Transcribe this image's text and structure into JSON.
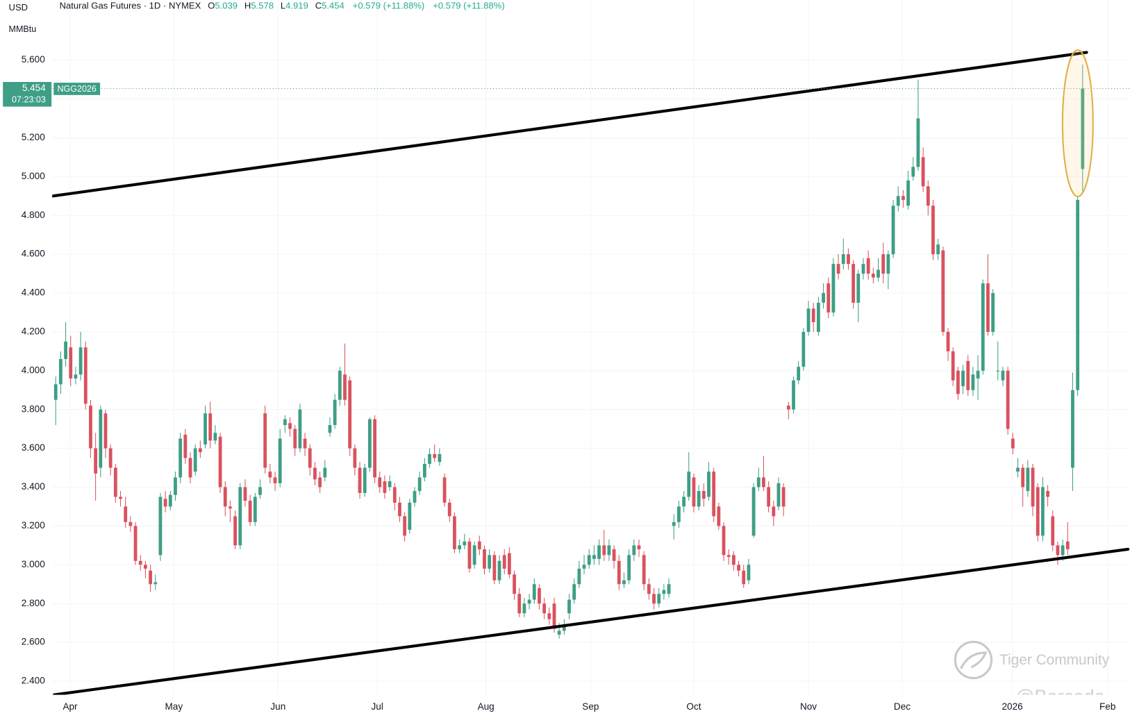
{
  "header": {
    "currency": "USD",
    "unit": "MMBtu",
    "title": "Natural Gas Futures · 1D · NYMEX",
    "ohlc_labels": [
      "O",
      "H",
      "L",
      "C"
    ],
    "change": [
      "+0.579 (+11.88%)",
      "+0.579 (+11.88%)"
    ]
  },
  "price_tag": {
    "countdown": "07:23:03",
    "symbol": "NGG2026"
  },
  "watermark": {
    "brand": "Tiger Community",
    "handle": "@Barcode"
  },
  "chart_data": {
    "type": "candlestick",
    "up_color": "#3e9e86",
    "down_color": "#d9525e",
    "grid": true,
    "xlim": [
      -0.7,
      215.5
    ],
    "ylim": [
      2.33,
      5.91
    ],
    "xticks": [
      {
        "value": 2.9,
        "label": "Apr"
      },
      {
        "value": 23.7,
        "label": "May"
      },
      {
        "value": 44.6,
        "label": "Jun"
      },
      {
        "value": 64.5,
        "label": "Jul"
      },
      {
        "value": 86.3,
        "label": "Aug"
      },
      {
        "value": 107.3,
        "label": "Sep"
      },
      {
        "value": 128,
        "label": "Oct"
      },
      {
        "value": 151,
        "label": "Nov"
      },
      {
        "value": 169.8,
        "label": "Dec"
      },
      {
        "value": 191.9,
        "label": "2026"
      },
      {
        "value": 211,
        "label": "Feb"
      }
    ],
    "yticks": [
      {
        "value": 2.4,
        "label": "2.400"
      },
      {
        "value": 2.6,
        "label": "2.600"
      },
      {
        "value": 2.8,
        "label": "2.800"
      },
      {
        "value": 3.0,
        "label": "3.000"
      },
      {
        "value": 3.2,
        "label": "3.200"
      },
      {
        "value": 3.4,
        "label": "3.400"
      },
      {
        "value": 3.6,
        "label": "3.600"
      },
      {
        "value": 3.8,
        "label": "3.800"
      },
      {
        "value": 4.0,
        "label": "4.000"
      },
      {
        "value": 4.2,
        "label": "4.200"
      },
      {
        "value": 4.4,
        "label": "4.400"
      },
      {
        "value": 4.6,
        "label": "4.600"
      },
      {
        "value": 4.8,
        "label": "4.800"
      },
      {
        "value": 5.0,
        "label": "5.000"
      },
      {
        "value": 5.2,
        "label": "5.200"
      },
      {
        "value": 5.4,
        "label": "5.400"
      },
      {
        "value": 5.6,
        "label": "5.600"
      }
    ],
    "trendlines": [
      {
        "from": [
          -0.6,
          4.9
        ],
        "to": [
          206.8,
          5.64
        ]
      },
      {
        "from": [
          -0.3,
          2.33
        ],
        "to": [
          215.1,
          3.08
        ]
      }
    ],
    "open": [
      3.85,
      3.93,
      4.06,
      4.12,
      3.96,
      3.98,
      4.12,
      3.82,
      3.6,
      3.5,
      3.78,
      3.6,
      3.5,
      3.35,
      3.3,
      3.22,
      3.2,
      3.02,
      3.0,
      2.97,
      2.9,
      3.05,
      3.34,
      3.3,
      3.36,
      3.45,
      3.67,
      3.55,
      3.48,
      3.6,
      3.62,
      3.78,
      3.64,
      3.66,
      3.4,
      3.3,
      3.25,
      3.1,
      3.4,
      3.33,
      3.22,
      3.36,
      3.78,
      3.48,
      3.45,
      3.42,
      3.72,
      3.73,
      3.7,
      3.6,
      3.65,
      3.6,
      3.5,
      3.45,
      3.45,
      3.68,
      3.72,
      3.85,
      3.98,
      3.95,
      3.6,
      3.5,
      3.37,
      3.5,
      3.75,
      3.45,
      3.43,
      3.4,
      3.4,
      3.32,
      3.25,
      3.18,
      3.32,
      3.38,
      3.45,
      3.52,
      3.57,
      3.53,
      3.45,
      3.32,
      3.25,
      3.08,
      3.1,
      3.12,
      3.0,
      3.12,
      3.08,
      2.98,
      3.05,
      2.92,
      3.05,
      3.06,
      2.95,
      2.85,
      2.75,
      2.8,
      2.82,
      2.88,
      2.8,
      2.75,
      2.8,
      2.64,
      2.66,
      2.75,
      2.82,
      2.9,
      2.98,
      3.0,
      3.03,
      3.03,
      3.1,
      3.05,
      3.08,
      3.02,
      2.9,
      2.92,
      3.05,
      3.1,
      3.05,
      2.9,
      2.85,
      2.8,
      2.85,
      2.85,
      3.2,
      3.22,
      3.3,
      3.35,
      3.45,
      3.3,
      3.38,
      3.35,
      3.48,
      3.3,
      3.2,
      3.05,
      3.05,
      3.0,
      2.97,
      2.92,
      3.15,
      3.4,
      3.45,
      3.4,
      3.3,
      3.3,
      3.4,
      3.82,
      3.8,
      3.95,
      4.02,
      4.2,
      4.32,
      4.2,
      4.35,
      4.45,
      4.3,
      4.55,
      4.55,
      4.6,
      4.55,
      4.35,
      4.5,
      4.58,
      4.5,
      4.48,
      4.6,
      4.5,
      4.6,
      4.85,
      4.9,
      4.85,
      5.0,
      5.05,
      5.1,
      4.95,
      4.85,
      4.6,
      4.62,
      4.2,
      4.1,
      4.0,
      3.92,
      4.05,
      3.9,
      3.96,
      4.0,
      4.45,
      4.2,
      4.0,
      3.95,
      4.0,
      3.65,
      3.48,
      3.5,
      3.38,
      3.5,
      3.4,
      3.15,
      3.38,
      3.25,
      3.1,
      3.05,
      3.12,
      3.5,
      3.9,
      5.039
    ],
    "high": [
      3.97,
      4.1,
      4.25,
      4.18,
      4.02,
      4.2,
      4.15,
      3.85,
      3.68,
      3.82,
      3.8,
      3.62,
      3.52,
      3.38,
      3.35,
      3.25,
      3.22,
      3.05,
      3.02,
      3.0,
      2.95,
      3.37,
      3.38,
      3.38,
      3.48,
      3.68,
      3.7,
      3.58,
      3.62,
      3.64,
      3.82,
      3.84,
      3.72,
      3.68,
      3.43,
      3.33,
      3.28,
      3.42,
      3.44,
      3.36,
      3.37,
      3.44,
      3.82,
      3.52,
      3.48,
      3.7,
      3.77,
      3.76,
      3.72,
      3.83,
      3.68,
      3.62,
      3.53,
      3.48,
      3.54,
      3.76,
      3.88,
      4.02,
      4.14,
      3.97,
      3.62,
      3.53,
      3.52,
      3.76,
      3.77,
      3.48,
      3.46,
      3.46,
      3.42,
      3.35,
      3.27,
      3.34,
      3.4,
      3.48,
      3.55,
      3.6,
      3.62,
      3.6,
      3.47,
      3.34,
      3.27,
      3.13,
      3.16,
      3.14,
      3.12,
      3.15,
      3.1,
      3.08,
      3.07,
      3.05,
      3.08,
      3.09,
      2.97,
      2.88,
      2.83,
      2.85,
      2.93,
      2.9,
      2.83,
      2.78,
      2.83,
      2.7,
      2.72,
      2.85,
      2.93,
      3.02,
      3.05,
      3.08,
      3.1,
      3.13,
      3.18,
      3.13,
      3.1,
      3.05,
      2.96,
      3.08,
      3.13,
      3.13,
      3.07,
      2.93,
      2.88,
      2.88,
      2.9,
      2.93,
      3.26,
      3.33,
      3.38,
      3.58,
      3.47,
      3.41,
      3.42,
      3.53,
      3.5,
      3.32,
      3.22,
      3.08,
      3.07,
      3.02,
      3.0,
      3.03,
      3.42,
      3.5,
      3.56,
      3.43,
      3.33,
      3.45,
      3.42,
      3.84,
      3.97,
      4.05,
      4.22,
      4.36,
      4.35,
      4.38,
      4.45,
      4.48,
      4.58,
      4.6,
      4.68,
      4.63,
      4.57,
      4.52,
      4.58,
      4.62,
      4.53,
      4.58,
      4.66,
      4.62,
      4.88,
      4.95,
      4.93,
      5.03,
      5.1,
      5.5,
      5.15,
      4.98,
      4.88,
      4.68,
      4.64,
      4.22,
      4.12,
      4.02,
      4.03,
      4.08,
      4.02,
      4.08,
      4.47,
      4.6,
      4.42,
      4.15,
      4.02,
      4.02,
      3.68,
      3.55,
      3.52,
      3.54,
      3.52,
      3.42,
      3.45,
      3.41,
      3.28,
      3.12,
      3.13,
      3.22,
      3.99,
      4.9,
      5.578
    ],
    "low": [
      3.72,
      3.88,
      4.02,
      3.92,
      3.93,
      3.95,
      3.8,
      3.55,
      3.33,
      3.45,
      3.55,
      3.46,
      3.32,
      3.3,
      3.19,
      3.17,
      3.0,
      2.97,
      2.93,
      2.86,
      2.87,
      3.02,
      3.27,
      3.28,
      3.33,
      3.42,
      3.52,
      3.42,
      3.46,
      3.55,
      3.6,
      3.6,
      3.62,
      3.37,
      3.25,
      3.22,
      3.08,
      3.08,
      3.3,
      3.2,
      3.2,
      3.34,
      3.47,
      3.42,
      3.38,
      3.4,
      3.68,
      3.66,
      3.56,
      3.58,
      3.56,
      3.46,
      3.41,
      3.37,
      3.43,
      3.66,
      3.7,
      3.82,
      3.82,
      3.56,
      3.46,
      3.34,
      3.35,
      3.48,
      3.42,
      3.37,
      3.34,
      3.38,
      3.28,
      3.22,
      3.12,
      3.16,
      3.3,
      3.36,
      3.43,
      3.5,
      3.53,
      3.51,
      3.3,
      3.22,
      3.06,
      3.06,
      3.08,
      2.96,
      2.98,
      3.05,
      2.95,
      2.96,
      2.9,
      2.9,
      2.95,
      2.93,
      2.82,
      2.73,
      2.73,
      2.77,
      2.8,
      2.77,
      2.72,
      2.69,
      2.65,
      2.62,
      2.64,
      2.72,
      2.8,
      2.88,
      2.95,
      2.98,
      3.0,
      3.0,
      3.02,
      3.02,
      2.98,
      2.87,
      2.88,
      2.9,
      3.02,
      3.04,
      2.87,
      2.82,
      2.77,
      2.78,
      2.82,
      2.83,
      3.13,
      3.19,
      3.27,
      3.33,
      3.27,
      3.28,
      3.3,
      3.33,
      3.22,
      3.18,
      3.02,
      3.0,
      2.97,
      2.94,
      2.88,
      2.9,
      3.14,
      3.38,
      3.38,
      3.27,
      3.2,
      3.28,
      3.25,
      3.75,
      3.78,
      3.93,
      4.0,
      4.18,
      4.2,
      4.18,
      4.32,
      4.27,
      4.28,
      4.47,
      4.52,
      4.52,
      4.32,
      4.25,
      4.47,
      4.47,
      4.45,
      4.46,
      4.45,
      4.42,
      4.58,
      4.82,
      4.84,
      4.83,
      4.98,
      5.03,
      4.92,
      4.8,
      4.57,
      4.57,
      4.18,
      4.05,
      3.92,
      3.85,
      3.88,
      3.87,
      3.87,
      3.85,
      3.98,
      4.18,
      4.18,
      3.95,
      3.92,
      3.67,
      3.57,
      3.45,
      3.3,
      3.35,
      3.25,
      3.12,
      3.12,
      3.3,
      3.07,
      3.0,
      3.02,
      3.05,
      3.38,
      3.87,
      4.919
    ],
    "close": [
      3.93,
      4.06,
      4.15,
      3.96,
      3.98,
      4.12,
      3.83,
      3.6,
      3.47,
      3.8,
      3.6,
      3.5,
      3.35,
      3.34,
      3.22,
      3.2,
      3.02,
      3.0,
      2.98,
      2.9,
      2.91,
      3.35,
      3.3,
      3.36,
      3.45,
      3.65,
      3.55,
      3.45,
      3.6,
      3.58,
      3.78,
      3.64,
      3.68,
      3.4,
      3.3,
      3.29,
      3.1,
      3.4,
      3.33,
      3.22,
      3.35,
      3.4,
      3.5,
      3.45,
      3.42,
      3.65,
      3.75,
      3.7,
      3.6,
      3.8,
      3.6,
      3.5,
      3.44,
      3.4,
      3.5,
      3.72,
      3.85,
      4.0,
      3.85,
      3.6,
      3.5,
      3.37,
      3.5,
      3.75,
      3.45,
      3.4,
      3.37,
      3.43,
      3.32,
      3.25,
      3.15,
      3.32,
      3.38,
      3.45,
      3.52,
      3.57,
      3.55,
      3.57,
      3.32,
      3.25,
      3.08,
      3.1,
      3.12,
      2.98,
      3.1,
      3.08,
      2.98,
      3.05,
      2.92,
      3.02,
      2.98,
      2.95,
      2.85,
      2.75,
      2.8,
      2.82,
      2.9,
      2.8,
      2.75,
      2.72,
      2.67,
      2.66,
      2.68,
      2.82,
      2.9,
      2.98,
      3.0,
      3.05,
      3.05,
      3.1,
      3.05,
      3.1,
      3.02,
      2.9,
      2.92,
      3.05,
      3.1,
      3.08,
      2.9,
      2.85,
      2.8,
      2.85,
      2.87,
      2.9,
      3.22,
      3.3,
      3.35,
      3.48,
      3.3,
      3.38,
      3.34,
      3.48,
      3.25,
      3.2,
      3.05,
      3.04,
      3.0,
      2.97,
      2.9,
      3.0,
      3.4,
      3.45,
      3.4,
      3.3,
      3.25,
      3.42,
      3.3,
      3.8,
      3.95,
      4.02,
      4.2,
      4.32,
      4.25,
      4.35,
      4.4,
      4.3,
      4.55,
      4.5,
      4.6,
      4.55,
      4.35,
      4.5,
      4.55,
      4.5,
      4.48,
      4.52,
      4.5,
      4.6,
      4.85,
      4.9,
      4.88,
      4.98,
      5.05,
      5.3,
      4.95,
      4.85,
      4.6,
      4.65,
      4.2,
      4.1,
      3.95,
      3.88,
      4.0,
      3.9,
      3.98,
      4.0,
      4.45,
      4.2,
      4.4,
      4.0,
      4.0,
      3.7,
      3.6,
      3.5,
      3.4,
      3.5,
      3.3,
      3.15,
      3.4,
      3.35,
      3.1,
      3.05,
      3.1,
      3.08,
      3.9,
      4.88,
      5.454
    ]
  }
}
